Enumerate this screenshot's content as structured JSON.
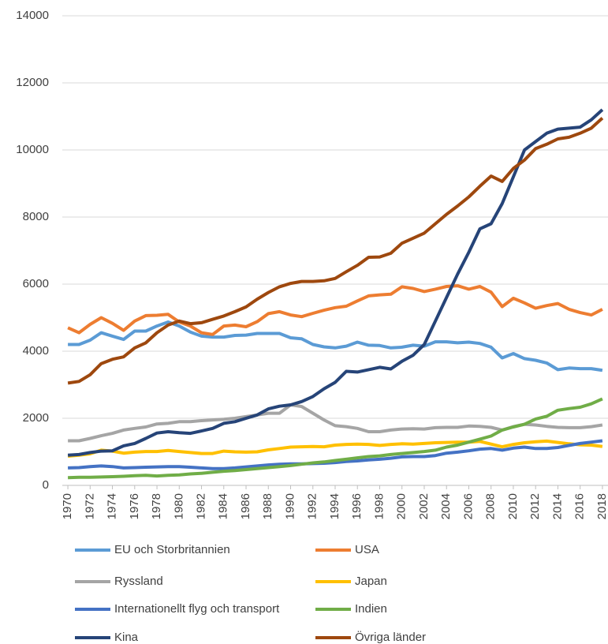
{
  "chart_data": {
    "type": "line",
    "x": [
      1970,
      1971,
      1972,
      1973,
      1974,
      1975,
      1976,
      1977,
      1978,
      1979,
      1980,
      1981,
      1982,
      1983,
      1984,
      1985,
      1986,
      1987,
      1988,
      1989,
      1990,
      1991,
      1992,
      1993,
      1994,
      1995,
      1996,
      1997,
      1998,
      1999,
      2000,
      2001,
      2002,
      2003,
      2004,
      2005,
      2006,
      2007,
      2008,
      2009,
      2010,
      2011,
      2012,
      2013,
      2014,
      2015,
      2016,
      2017,
      2018
    ],
    "xlim": [
      1969.5,
      2018.5
    ],
    "xticks": [
      1970,
      1972,
      1974,
      1976,
      1978,
      1980,
      1982,
      1984,
      1986,
      1988,
      1990,
      1992,
      1994,
      1996,
      1998,
      2000,
      2002,
      2004,
      2006,
      2008,
      2010,
      2012,
      2014,
      2016,
      2018
    ],
    "ylim": [
      0,
      14000
    ],
    "yticks": [
      0,
      2000,
      4000,
      6000,
      8000,
      10000,
      12000,
      14000
    ],
    "grid": true,
    "legend": "bottom",
    "series": [
      {
        "name": "EU och Storbritannien",
        "color": "#5b9bd5",
        "values": [
          4200,
          4200,
          4330,
          4550,
          4450,
          4350,
          4600,
          4600,
          4750,
          4870,
          4750,
          4570,
          4450,
          4420,
          4420,
          4470,
          4480,
          4530,
          4530,
          4530,
          4400,
          4370,
          4200,
          4130,
          4100,
          4150,
          4270,
          4180,
          4170,
          4100,
          4120,
          4180,
          4150,
          4280,
          4280,
          4250,
          4270,
          4230,
          4120,
          3800,
          3930,
          3780,
          3730,
          3650,
          3450,
          3500,
          3480,
          3480,
          3430
        ]
      },
      {
        "name": "USA",
        "color": "#ed7d31",
        "values": [
          4700,
          4550,
          4800,
          5000,
          4830,
          4620,
          4900,
          5060,
          5070,
          5100,
          4870,
          4750,
          4550,
          4500,
          4750,
          4780,
          4730,
          4880,
          5120,
          5180,
          5080,
          5030,
          5130,
          5220,
          5300,
          5340,
          5500,
          5650,
          5680,
          5700,
          5920,
          5870,
          5780,
          5850,
          5930,
          5950,
          5850,
          5930,
          5760,
          5330,
          5580,
          5440,
          5280,
          5360,
          5420,
          5250,
          5150,
          5080,
          5250
        ]
      },
      {
        "name": "Ryssland",
        "color": "#a5a5a5",
        "values": [
          1330,
          1330,
          1400,
          1480,
          1550,
          1650,
          1700,
          1740,
          1830,
          1850,
          1900,
          1900,
          1930,
          1950,
          1970,
          2000,
          2050,
          2100,
          2150,
          2150,
          2400,
          2350,
          2150,
          1950,
          1780,
          1750,
          1700,
          1600,
          1600,
          1650,
          1680,
          1690,
          1680,
          1720,
          1730,
          1730,
          1770,
          1760,
          1730,
          1650,
          1750,
          1820,
          1800,
          1760,
          1730,
          1720,
          1720,
          1750,
          1800
        ]
      },
      {
        "name": "Japan",
        "color": "#ffc000",
        "values": [
          870,
          900,
          940,
          1050,
          1020,
          960,
          990,
          1010,
          1010,
          1040,
          1010,
          980,
          950,
          950,
          1020,
          1000,
          990,
          1000,
          1060,
          1100,
          1140,
          1150,
          1160,
          1150,
          1200,
          1220,
          1230,
          1220,
          1190,
          1220,
          1240,
          1230,
          1250,
          1270,
          1280,
          1290,
          1290,
          1310,
          1230,
          1150,
          1220,
          1270,
          1300,
          1320,
          1280,
          1240,
          1210,
          1200,
          1160
        ]
      },
      {
        "name": "Internationellt flyg och transport",
        "color": "#4472c4",
        "values": [
          520,
          530,
          560,
          580,
          560,
          520,
          530,
          540,
          550,
          560,
          560,
          540,
          520,
          500,
          500,
          520,
          550,
          580,
          610,
          630,
          640,
          640,
          650,
          660,
          680,
          710,
          730,
          760,
          780,
          810,
          850,
          860,
          860,
          890,
          960,
          990,
          1030,
          1080,
          1100,
          1050,
          1110,
          1140,
          1100,
          1100,
          1130,
          1190,
          1250,
          1290,
          1330
        ]
      },
      {
        "name": "Indien",
        "color": "#70ad47",
        "values": [
          230,
          240,
          240,
          250,
          260,
          270,
          290,
          300,
          280,
          300,
          310,
          340,
          360,
          390,
          420,
          440,
          470,
          500,
          530,
          560,
          590,
          630,
          670,
          700,
          740,
          780,
          820,
          860,
          880,
          920,
          950,
          980,
          1010,
          1050,
          1140,
          1200,
          1290,
          1380,
          1470,
          1650,
          1740,
          1820,
          1980,
          2060,
          2240,
          2290,
          2330,
          2430,
          2580
        ]
      },
      {
        "name": "Kina",
        "color": "#264478",
        "values": [
          900,
          920,
          980,
          1020,
          1030,
          1180,
          1250,
          1400,
          1560,
          1600,
          1570,
          1550,
          1620,
          1700,
          1850,
          1900,
          2000,
          2100,
          2280,
          2360,
          2400,
          2500,
          2650,
          2880,
          3070,
          3400,
          3380,
          3450,
          3520,
          3470,
          3700,
          3880,
          4200,
          4900,
          5600,
          6300,
          6950,
          7650,
          7800,
          8400,
          9200,
          10000,
          10250,
          10500,
          10620,
          10650,
          10680,
          10900,
          11200
        ]
      },
      {
        "name": "Övriga länder",
        "color": "#9e480e",
        "values": [
          3050,
          3100,
          3300,
          3630,
          3760,
          3830,
          4100,
          4250,
          4550,
          4780,
          4900,
          4820,
          4850,
          4950,
          5050,
          5180,
          5320,
          5550,
          5750,
          5920,
          6020,
          6080,
          6080,
          6100,
          6170,
          6370,
          6560,
          6800,
          6810,
          6920,
          7220,
          7370,
          7520,
          7800,
          8080,
          8330,
          8600,
          8920,
          9220,
          9060,
          9450,
          9700,
          10040,
          10170,
          10330,
          10380,
          10500,
          10650,
          10950
        ]
      }
    ]
  }
}
